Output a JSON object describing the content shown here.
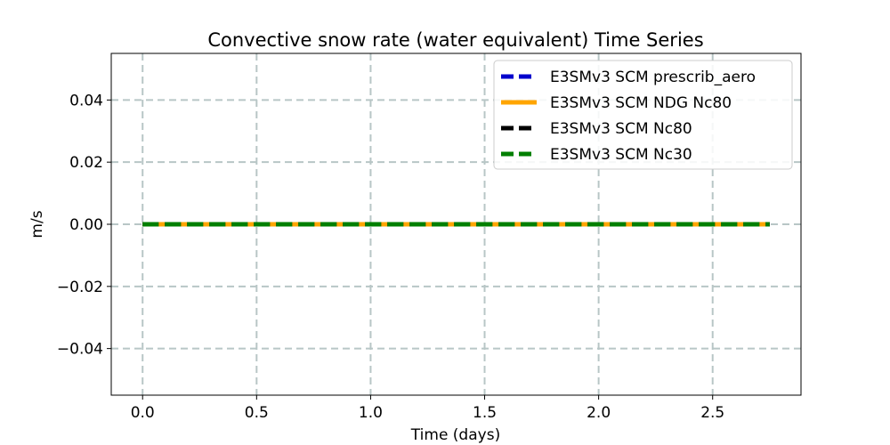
{
  "chart_data": {
    "type": "line",
    "title": "Convective snow rate (water equivalent) Time Series",
    "xlabel": "Time (days)",
    "ylabel": "m/s",
    "xlim": [
      -0.1375,
      2.8875
    ],
    "ylim": [
      -0.055,
      0.055
    ],
    "x_ticks": [
      0.0,
      0.5,
      1.0,
      1.5,
      2.0,
      2.5
    ],
    "x_tick_labels": [
      "0.0",
      "0.5",
      "1.0",
      "1.5",
      "2.0",
      "2.5"
    ],
    "y_ticks": [
      0.04,
      0.02,
      0.0,
      -0.02,
      -0.04
    ],
    "y_tick_labels": [
      "0.04",
      "0.02",
      "0.00",
      "−0.02",
      "−0.04"
    ],
    "grid": true,
    "legend_position": "top-right",
    "x": [
      0.0,
      2.75
    ],
    "series": [
      {
        "name": "E3SMv3 SCM prescrib_aero",
        "values": [
          0.0,
          0.0
        ],
        "color": "#0000cc",
        "style": "dashed"
      },
      {
        "name": "E3SMv3 SCM NDG Nc80",
        "values": [
          0.0,
          0.0
        ],
        "color": "#ffa500",
        "style": "solid"
      },
      {
        "name": "E3SMv3 SCM Nc80",
        "values": [
          0.0,
          0.0
        ],
        "color": "#000000",
        "style": "dashed"
      },
      {
        "name": "E3SMv3 SCM Nc30",
        "values": [
          0.0,
          0.0
        ],
        "color": "#007f00",
        "style": "dashed"
      }
    ]
  }
}
